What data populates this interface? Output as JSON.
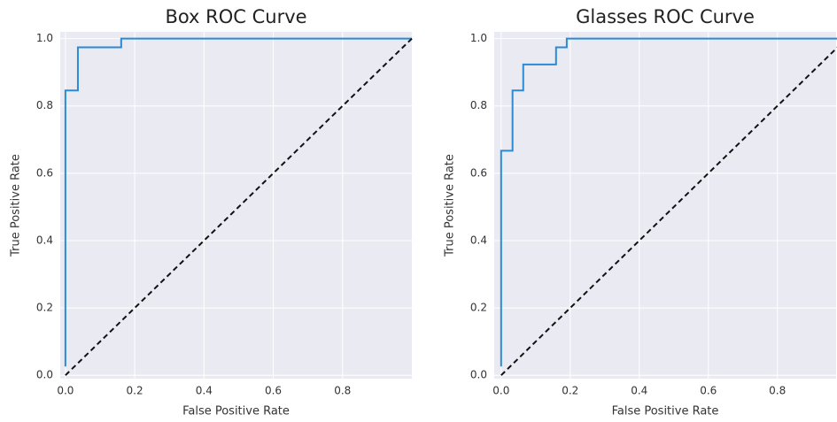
{
  "chart_data": [
    {
      "type": "line",
      "title": "Box ROC Curve",
      "x_label": "False Positive Rate",
      "y_label": "True Positive Rate",
      "xlim": [
        -0.015,
        1.0
      ],
      "ylim": [
        -0.01,
        1.02
      ],
      "xticks": [
        {
          "value": 0,
          "label": "0.0"
        },
        0.2,
        0.4,
        0.6,
        0.8
      ],
      "yticks": [
        {
          "value": 0,
          "label": "0.0"
        },
        0.2,
        0.4,
        0.6,
        0.8,
        {
          "value": 1,
          "label": "1.0"
        }
      ],
      "grid": true,
      "series": [
        {
          "color": "#2a8bd4",
          "x": [
            0,
            0,
            0.036,
            0.036,
            0.161,
            0.161,
            1.0
          ],
          "values": [
            0.026,
            0.846,
            0.846,
            0.974,
            0.974,
            1.0,
            1.0
          ]
        },
        {
          "color": "#111111",
          "dashed": true,
          "x": [
            0,
            1
          ],
          "values": [
            0,
            1
          ]
        }
      ]
    },
    {
      "type": "line",
      "title": "Glasses ROC Curve",
      "x_label": "False Positive Rate",
      "y_label": "True Positive Rate",
      "xlim": [
        -0.02,
        0.97
      ],
      "ylim": [
        -0.01,
        1.02
      ],
      "xticks": [
        {
          "value": 0,
          "label": "0.0"
        },
        0.2,
        0.4,
        0.6,
        0.8
      ],
      "yticks": [
        {
          "value": 0,
          "label": "0.0"
        },
        0.2,
        0.4,
        0.6,
        0.8,
        {
          "value": 1,
          "label": "1.0"
        }
      ],
      "grid": true,
      "series": [
        {
          "color": "#2a8bd4",
          "x": [
            0,
            0,
            0.033,
            0.033,
            0.064,
            0.064,
            0.159,
            0.159,
            0.19,
            0.19,
            1.0
          ],
          "values": [
            0.026,
            0.667,
            0.667,
            0.846,
            0.846,
            0.923,
            0.923,
            0.974,
            0.974,
            1.0,
            1.0
          ]
        },
        {
          "color": "#111111",
          "dashed": true,
          "x": [
            0,
            1
          ],
          "values": [
            0,
            1
          ]
        }
      ]
    }
  ]
}
